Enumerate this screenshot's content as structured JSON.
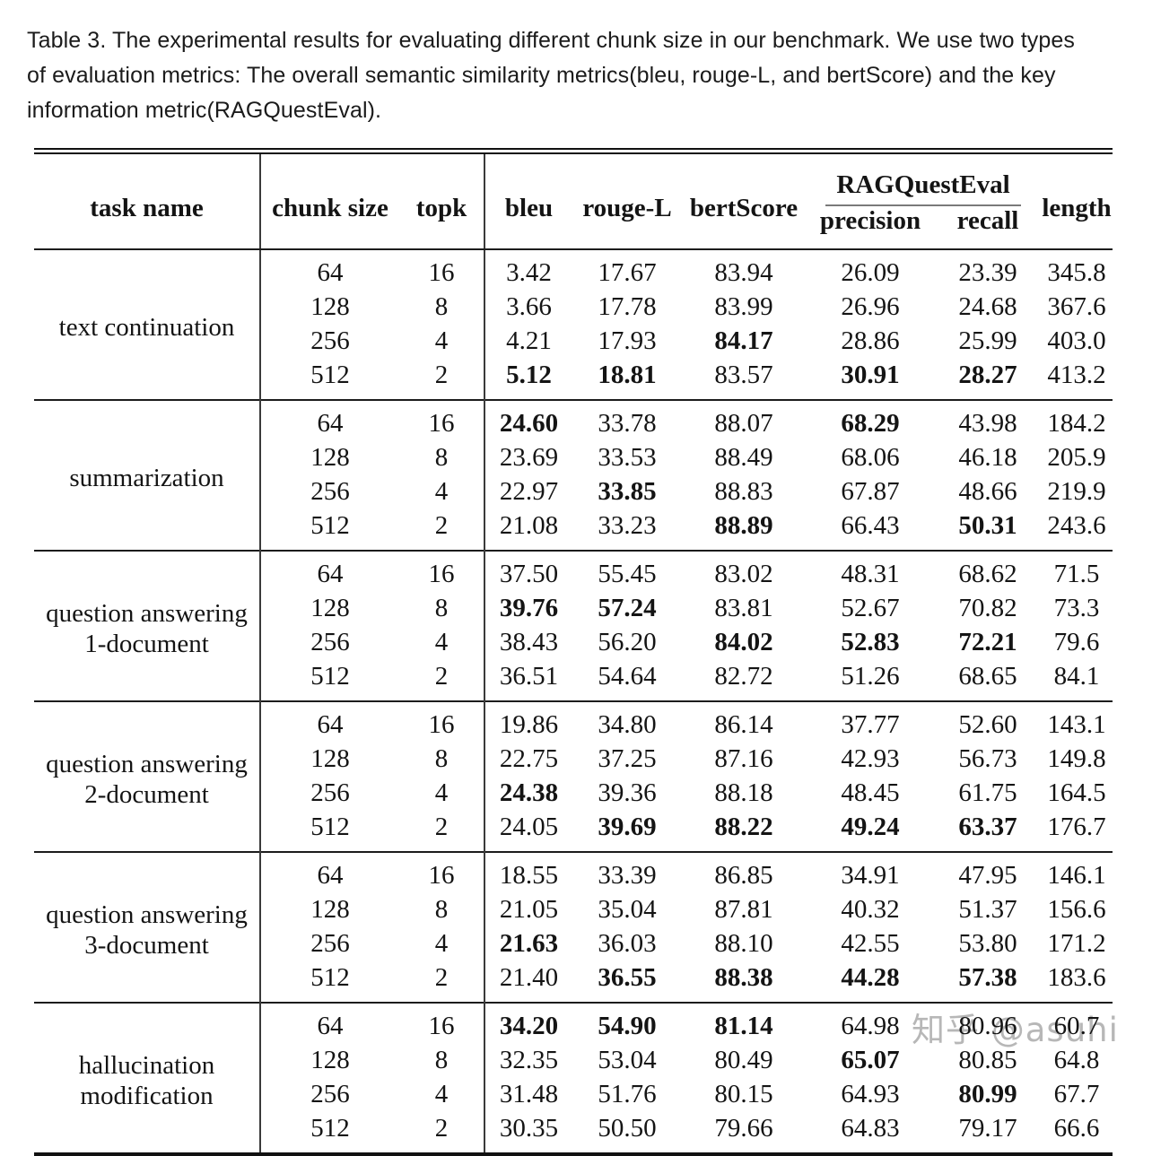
{
  "caption": {
    "lines": [
      "Table 3.  The experimental results for evaluating different chunk size in our benchmark. We use two types",
      "of evaluation metrics: The overall semantic similarity metrics(bleu, rouge-L, and bertScore) and the key",
      "information metric(RAGQuestEval)."
    ]
  },
  "watermark": "知乎 @asuhi",
  "colors": {
    "rule": "#1c1c1c",
    "subrule": "#7a7a7a",
    "watermark_gray": "#ababab",
    "text": "#141414"
  },
  "table": {
    "headers": {
      "task": "task name",
      "chunk": "chunk size",
      "topk": "topk",
      "bleu": "bleu",
      "rouge": "rouge-L",
      "bert": "bertScore",
      "ragquesteval": "RAGQuestEval",
      "precision": "precision",
      "recall": "recall",
      "length": "length"
    },
    "metric_keys": [
      "bleu",
      "rouge-l",
      "bertscore",
      "precision",
      "recall",
      "length"
    ],
    "groups": [
      {
        "task": [
          "text continuation"
        ],
        "rows": [
          {
            "chunk": "64",
            "topk": "16",
            "vals": [
              "3.42",
              "17.67",
              "83.94",
              "26.09",
              "23.39",
              "345.8"
            ],
            "bold": []
          },
          {
            "chunk": "128",
            "topk": "8",
            "vals": [
              "3.66",
              "17.78",
              "83.99",
              "26.96",
              "24.68",
              "367.6"
            ],
            "bold": []
          },
          {
            "chunk": "256",
            "topk": "4",
            "vals": [
              "4.21",
              "17.93",
              "84.17",
              "28.86",
              "25.99",
              "403.0"
            ],
            "bold": [
              2
            ]
          },
          {
            "chunk": "512",
            "topk": "2",
            "vals": [
              "5.12",
              "18.81",
              "83.57",
              "30.91",
              "28.27",
              "413.2"
            ],
            "bold": [
              0,
              1,
              3,
              4
            ]
          }
        ]
      },
      {
        "task": [
          "summarization"
        ],
        "rows": [
          {
            "chunk": "64",
            "topk": "16",
            "vals": [
              "24.60",
              "33.78",
              "88.07",
              "68.29",
              "43.98",
              "184.2"
            ],
            "bold": [
              0,
              3
            ]
          },
          {
            "chunk": "128",
            "topk": "8",
            "vals": [
              "23.69",
              "33.53",
              "88.49",
              "68.06",
              "46.18",
              "205.9"
            ],
            "bold": []
          },
          {
            "chunk": "256",
            "topk": "4",
            "vals": [
              "22.97",
              "33.85",
              "88.83",
              "67.87",
              "48.66",
              "219.9"
            ],
            "bold": [
              1
            ]
          },
          {
            "chunk": "512",
            "topk": "2",
            "vals": [
              "21.08",
              "33.23",
              "88.89",
              "66.43",
              "50.31",
              "243.6"
            ],
            "bold": [
              2,
              4
            ]
          }
        ]
      },
      {
        "task": [
          "question answering",
          "1-document"
        ],
        "rows": [
          {
            "chunk": "64",
            "topk": "16",
            "vals": [
              "37.50",
              "55.45",
              "83.02",
              "48.31",
              "68.62",
              "71.5"
            ],
            "bold": []
          },
          {
            "chunk": "128",
            "topk": "8",
            "vals": [
              "39.76",
              "57.24",
              "83.81",
              "52.67",
              "70.82",
              "73.3"
            ],
            "bold": [
              0,
              1
            ]
          },
          {
            "chunk": "256",
            "topk": "4",
            "vals": [
              "38.43",
              "56.20",
              "84.02",
              "52.83",
              "72.21",
              "79.6"
            ],
            "bold": [
              2,
              3,
              4
            ]
          },
          {
            "chunk": "512",
            "topk": "2",
            "vals": [
              "36.51",
              "54.64",
              "82.72",
              "51.26",
              "68.65",
              "84.1"
            ],
            "bold": []
          }
        ]
      },
      {
        "task": [
          "question answering",
          "2-document"
        ],
        "rows": [
          {
            "chunk": "64",
            "topk": "16",
            "vals": [
              "19.86",
              "34.80",
              "86.14",
              "37.77",
              "52.60",
              "143.1"
            ],
            "bold": []
          },
          {
            "chunk": "128",
            "topk": "8",
            "vals": [
              "22.75",
              "37.25",
              "87.16",
              "42.93",
              "56.73",
              "149.8"
            ],
            "bold": []
          },
          {
            "chunk": "256",
            "topk": "4",
            "vals": [
              "24.38",
              "39.36",
              "88.18",
              "48.45",
              "61.75",
              "164.5"
            ],
            "bold": [
              0
            ]
          },
          {
            "chunk": "512",
            "topk": "2",
            "vals": [
              "24.05",
              "39.69",
              "88.22",
              "49.24",
              "63.37",
              "176.7"
            ],
            "bold": [
              1,
              2,
              3,
              4
            ]
          }
        ]
      },
      {
        "task": [
          "question answering",
          "3-document"
        ],
        "rows": [
          {
            "chunk": "64",
            "topk": "16",
            "vals": [
              "18.55",
              "33.39",
              "86.85",
              "34.91",
              "47.95",
              "146.1"
            ],
            "bold": []
          },
          {
            "chunk": "128",
            "topk": "8",
            "vals": [
              "21.05",
              "35.04",
              "87.81",
              "40.32",
              "51.37",
              "156.6"
            ],
            "bold": []
          },
          {
            "chunk": "256",
            "topk": "4",
            "vals": [
              "21.63",
              "36.03",
              "88.10",
              "42.55",
              "53.80",
              "171.2"
            ],
            "bold": [
              0
            ]
          },
          {
            "chunk": "512",
            "topk": "2",
            "vals": [
              "21.40",
              "36.55",
              "88.38",
              "44.28",
              "57.38",
              "183.6"
            ],
            "bold": [
              1,
              2,
              3,
              4
            ]
          }
        ]
      },
      {
        "task": [
          "hallucination",
          "modification"
        ],
        "rows": [
          {
            "chunk": "64",
            "topk": "16",
            "vals": [
              "34.20",
              "54.90",
              "81.14",
              "64.98",
              "80.96",
              "60.7"
            ],
            "bold": [
              0,
              1,
              2
            ]
          },
          {
            "chunk": "128",
            "topk": "8",
            "vals": [
              "32.35",
              "53.04",
              "80.49",
              "65.07",
              "80.85",
              "64.8"
            ],
            "bold": [
              3
            ]
          },
          {
            "chunk": "256",
            "topk": "4",
            "vals": [
              "31.48",
              "51.76",
              "80.15",
              "64.93",
              "80.99",
              "67.7"
            ],
            "bold": [
              4
            ]
          },
          {
            "chunk": "512",
            "topk": "2",
            "vals": [
              "30.35",
              "50.50",
              "79.66",
              "64.83",
              "79.17",
              "66.6"
            ],
            "bold": []
          }
        ]
      }
    ]
  }
}
